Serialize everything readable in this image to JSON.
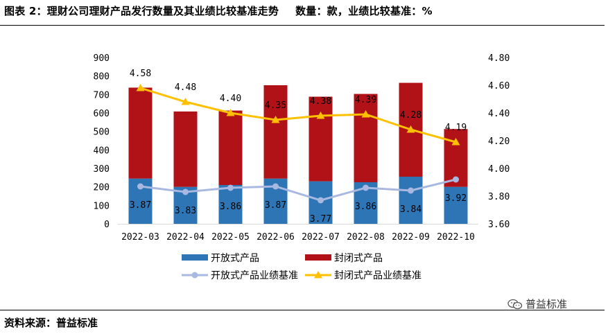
{
  "header": {
    "figure_title": "图表 2：理财公司理财产品发行数量及其业绩比较基准走势",
    "units_note": "数量：款，业绩比较基准：%"
  },
  "footer": {
    "source": "资料来源：普益标准",
    "watermark": "普益标准",
    "watermark_icon": "wechat-icon"
  },
  "colors": {
    "open_bar": "#2e75b6",
    "closed_bar": "#b11217",
    "open_line": "#a9b8e0",
    "closed_line": "#ffc000"
  },
  "chart_data": {
    "type": "bar",
    "stacked": true,
    "categories": [
      "2022-03",
      "2022-04",
      "2022-05",
      "2022-06",
      "2022-07",
      "2022-08",
      "2022-09",
      "2022-10"
    ],
    "series": [
      {
        "name": "开放式产品",
        "kind": "bar",
        "axis": "left",
        "values": [
          245,
          200,
          210,
          245,
          230,
          225,
          255,
          200
        ]
      },
      {
        "name": "封闭式产品",
        "kind": "bar",
        "axis": "left",
        "values": [
          492,
          408,
          403,
          505,
          458,
          478,
          508,
          313
        ]
      },
      {
        "name": "开放式产品业绩基准",
        "kind": "line",
        "axis": "right",
        "values": [
          3.87,
          3.83,
          3.86,
          3.87,
          3.77,
          3.86,
          3.84,
          3.92
        ],
        "labels": [
          "3.87",
          "3.83",
          "3.86",
          "3.87",
          "3.77",
          "3.86",
          "3.84",
          "3.92"
        ]
      },
      {
        "name": "封闭式产品业绩基准",
        "kind": "line",
        "axis": "right",
        "values": [
          4.58,
          4.48,
          4.4,
          4.35,
          4.38,
          4.39,
          4.28,
          4.19
        ],
        "labels": [
          "4.58",
          "4.48",
          "4.40",
          "4.35",
          "4.38",
          "4.39",
          "4.28",
          "4.19"
        ]
      }
    ],
    "left_axis": {
      "ylim": [
        0,
        900
      ],
      "ticks": [
        "0",
        "100",
        "200",
        "300",
        "400",
        "500",
        "600",
        "700",
        "800",
        "900"
      ]
    },
    "right_axis": {
      "ylim": [
        3.6,
        4.8
      ],
      "ticks": [
        "3.60",
        "3.80",
        "4.00",
        "4.20",
        "4.40",
        "4.60",
        "4.80"
      ]
    },
    "legend": [
      "开放式产品",
      "封闭式产品",
      "开放式产品业绩基准",
      "封闭式产品业绩基准"
    ],
    "legend_position": "bottom",
    "grid": false
  }
}
